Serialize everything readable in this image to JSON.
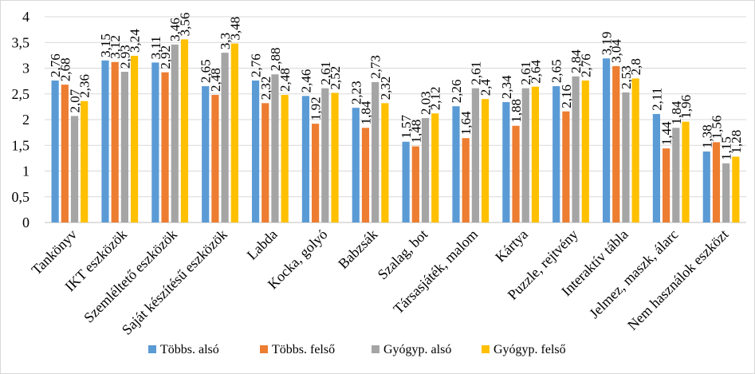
{
  "chart_data": {
    "type": "bar",
    "title": "",
    "xlabel": "",
    "ylabel": "",
    "ylim": [
      0,
      4
    ],
    "yticks": [
      "0",
      "0,5",
      "1",
      "1,5",
      "2",
      "2,5",
      "3",
      "3,5",
      "4"
    ],
    "grid": true,
    "legend_position": "bottom",
    "categories": [
      "Tankönyv",
      "IKT eszközök",
      "Szemléltető eszközök",
      "Saját készítésű eszközök",
      "Labda",
      "Kocka, golyó",
      "Babzsák",
      "Szalag, bot",
      "Társasjáték, malom",
      "Kártya",
      "Puzzle, rejtvény",
      "Interaktív tábla",
      "Jelmez, maszk, álarc",
      "Nem használok eszközt"
    ],
    "series": [
      {
        "name": "Többs. alsó",
        "color": "#5b9bd5",
        "values": [
          2.76,
          3.15,
          3.11,
          2.65,
          2.76,
          2.46,
          2.23,
          1.57,
          2.26,
          2.34,
          2.65,
          3.19,
          2.11,
          1.38
        ],
        "labels": [
          "2,76",
          "3,15",
          "3,11",
          "2,65",
          "2,76",
          "2,46",
          "2,23",
          "1,57",
          "2,26",
          "2,34",
          "2,65",
          "3,19",
          "2,11",
          "1,38"
        ]
      },
      {
        "name": "Többs. felső",
        "color": "#ed7d31",
        "values": [
          2.68,
          3.12,
          2.92,
          2.48,
          2.32,
          1.92,
          1.84,
          1.48,
          1.64,
          1.88,
          2.16,
          3.04,
          1.44,
          1.56
        ],
        "labels": [
          "2,68",
          "3,12",
          "2,92",
          "2,48",
          "2,32",
          "1,92",
          "1,84",
          "1,48",
          "1,64",
          "1,88",
          "2,16",
          "3,04",
          "1,44",
          "1,56"
        ]
      },
      {
        "name": "Gyógyp. alsó",
        "color": "#a5a5a5",
        "values": [
          2.07,
          2.93,
          3.46,
          3.3,
          2.88,
          2.61,
          2.73,
          2.03,
          2.61,
          2.61,
          2.84,
          2.53,
          1.84,
          1.15
        ],
        "labels": [
          "2,07",
          "2,93",
          "3,46",
          "3,3",
          "2,88",
          "2,61",
          "2,73",
          "2,03",
          "2,61",
          "2,61",
          "2,84",
          "2,53",
          "1,84",
          "1,15"
        ]
      },
      {
        "name": "Gyógyp. felső",
        "color": "#ffc000",
        "values": [
          2.36,
          3.24,
          3.56,
          3.48,
          2.48,
          2.52,
          2.32,
          2.12,
          2.4,
          2.64,
          2.76,
          2.8,
          1.96,
          1.28
        ],
        "labels": [
          "2,36",
          "3,24",
          "3,56",
          "3,48",
          "2,48",
          "2,52",
          "2,32",
          "2,12",
          "2,4",
          "2,64",
          "2,76",
          "2,8",
          "1,96",
          "1,28"
        ]
      }
    ]
  }
}
